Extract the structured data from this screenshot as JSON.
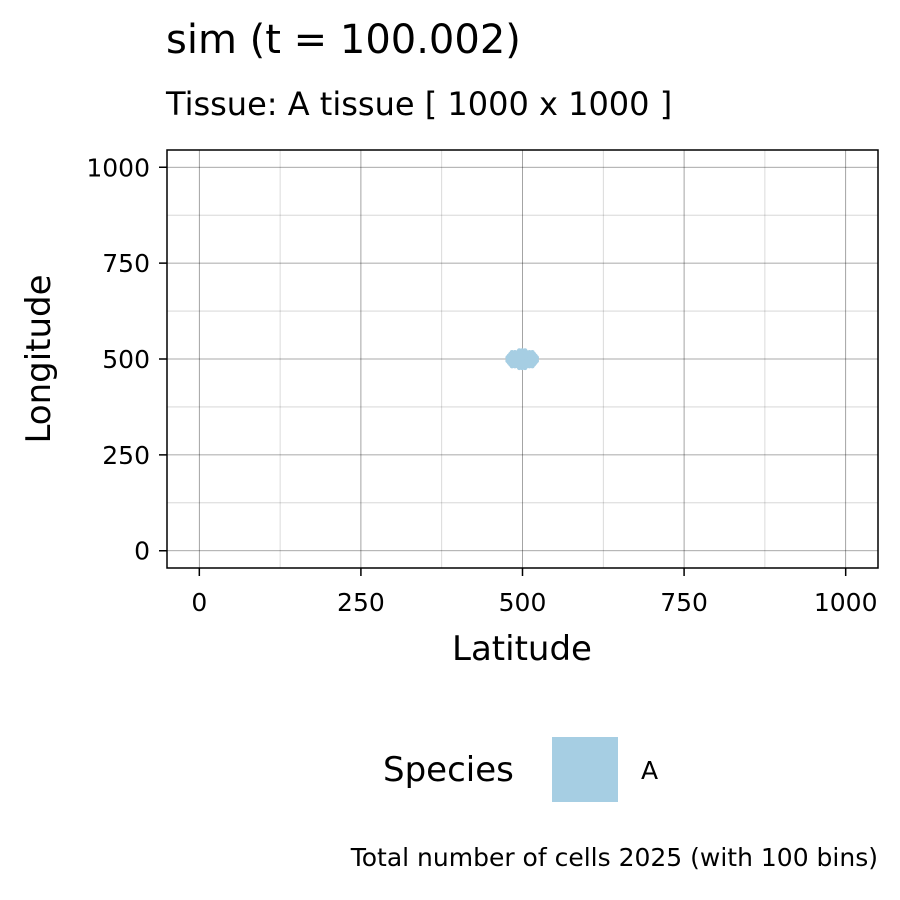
{
  "chart_data": {
    "type": "heatmap",
    "title": "sim (t = 100.002)",
    "subtitle": "Tissue: A tissue [ 1000 x 1000 ]",
    "xlabel": "Latitude",
    "ylabel": "Longitude",
    "xlim": [
      -50,
      1050
    ],
    "ylim": [
      -45,
      1045
    ],
    "x_ticks": [
      0,
      250,
      500,
      750,
      1000
    ],
    "y_ticks": [
      0,
      250,
      500,
      750,
      1000
    ],
    "x_tick_labels": [
      "0",
      "250",
      "500",
      "750",
      "1000"
    ],
    "y_tick_labels": [
      "0",
      "250",
      "500",
      "750",
      "1000"
    ],
    "grid": true,
    "legend": {
      "title": "Species",
      "position": "bottom",
      "entries": [
        {
          "label": "A",
          "color": "#a6cee3"
        }
      ]
    },
    "caption": "Total number of cells 2025 (with 100 bins)",
    "bins": 100,
    "total_cells": 2025,
    "series": [
      {
        "species": "A",
        "color": "#a6cee3",
        "cluster": {
          "x_range": [
            477,
            522
          ],
          "y_range": [
            477,
            522
          ]
        }
      }
    ]
  }
}
